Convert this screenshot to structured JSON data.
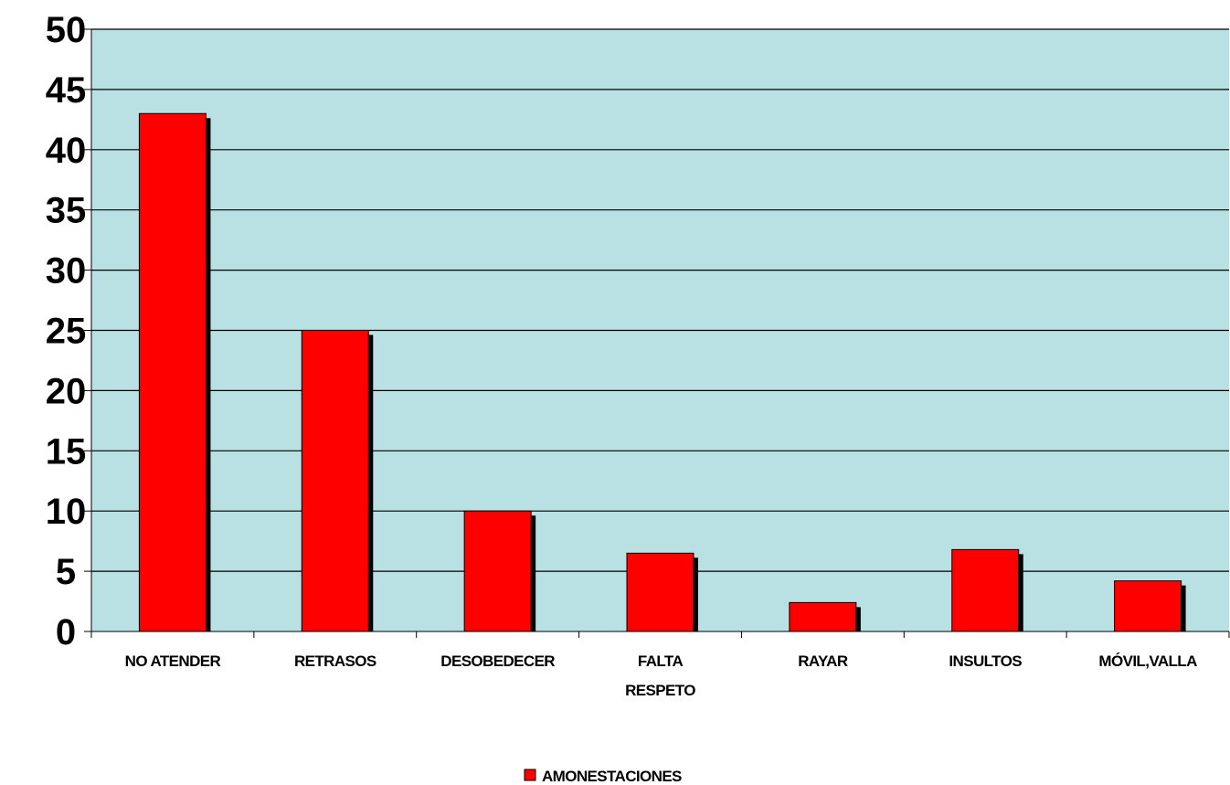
{
  "chart_data": {
    "type": "bar",
    "categories": [
      [
        "NO ATENDER"
      ],
      [
        "RETRASOS"
      ],
      [
        "DESOBEDECER"
      ],
      [
        "FALTA",
        "RESPETO"
      ],
      [
        "RAYAR"
      ],
      [
        "INSULTOS"
      ],
      [
        "MÓVIL,VALLA"
      ]
    ],
    "series": [
      {
        "name": "AMONESTACIONES",
        "values": [
          43,
          25,
          10,
          6.5,
          2.4,
          6.8,
          4.2
        ],
        "color": "#ff0000"
      }
    ],
    "ylim": [
      0,
      50
    ],
    "yticks": [
      0,
      5,
      10,
      15,
      20,
      25,
      30,
      35,
      40,
      45,
      50
    ],
    "grid": true,
    "plot_background": "#b9e1e3",
    "shadow_color": "#000000",
    "legend": "bottom"
  }
}
